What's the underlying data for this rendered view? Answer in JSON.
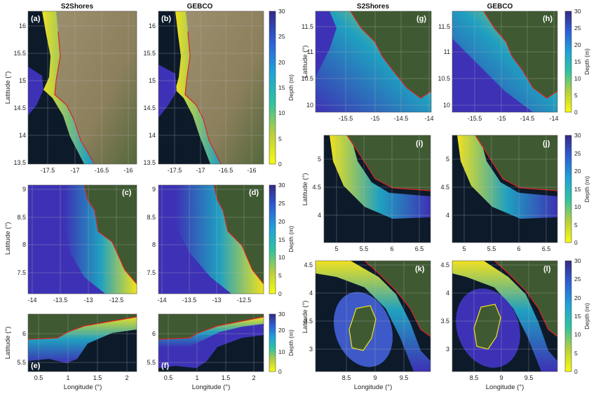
{
  "headers": {
    "left_a": "S2Shores",
    "left_b": "GEBCO",
    "right_a": "S2Shores",
    "right_b": "GEBCO"
  },
  "axis_labels": {
    "latitude": "Latitude (°)",
    "longitude": "Longitude (°)",
    "depth": "Depth (m)"
  },
  "colorbar": {
    "ticks": [
      "30",
      "25",
      "20",
      "15",
      "10",
      "5",
      "0"
    ],
    "range": [
      0,
      30
    ]
  },
  "colors": {
    "land_green": "#3f5a32",
    "sahel_tan": "#9c8f6e",
    "ocean_dark": "#0c1a2a",
    "deep": "#3d32b5",
    "mid": "#1fa0c0",
    "shallow": "#f2e21b",
    "coast_red": "#e02020"
  },
  "panels": [
    {
      "id": "a",
      "label": "(a)",
      "yticks": [
        "16",
        "15.5",
        "15",
        "14.5",
        "14",
        "13.5"
      ],
      "xticks": [
        "-17.5",
        "-17",
        "-16.5",
        "-16"
      ]
    },
    {
      "id": "b",
      "label": "(b)",
      "yticks": [
        "16",
        "15.5",
        "15",
        "14.5",
        "14",
        "13.5"
      ],
      "xticks": [
        "-17.5",
        "-17",
        "-16.5",
        "-16"
      ]
    },
    {
      "id": "c",
      "label": "(c)",
      "yticks": [
        "9",
        "8.5",
        "8",
        "7.5"
      ],
      "xticks": [
        "-14",
        "-13.5",
        "-13",
        "-12.5"
      ]
    },
    {
      "id": "d",
      "label": "(d)",
      "yticks": [
        "9",
        "8.5",
        "8",
        "7.5"
      ],
      "xticks": [
        "-14",
        "-13.5",
        "-13",
        "-12.5"
      ]
    },
    {
      "id": "e",
      "label": "(e)",
      "yticks": [
        "6",
        "5.5"
      ],
      "xticks": [
        "0.5",
        "1",
        "1.5",
        "2"
      ]
    },
    {
      "id": "f",
      "label": "(f)",
      "yticks": [
        "6",
        "5.5"
      ],
      "xticks": [
        "0.5",
        "1",
        "1.5",
        "2"
      ]
    },
    {
      "id": "g",
      "label": "(g)",
      "yticks": [
        "11.5",
        "11",
        "10.5",
        "10"
      ],
      "xticks": [
        "-15.5",
        "-15",
        "-14.5",
        "-14"
      ]
    },
    {
      "id": "h",
      "label": "(h)",
      "yticks": [
        "11.5",
        "11",
        "10.5",
        "10"
      ],
      "xticks": [
        "-15.5",
        "-15",
        "-14.5",
        "-14"
      ]
    },
    {
      "id": "i",
      "label": "(i)",
      "yticks": [
        "5",
        "4.5",
        "4"
      ],
      "xticks": [
        "5",
        "5.5",
        "6",
        "6.5"
      ]
    },
    {
      "id": "j",
      "label": "(j)",
      "yticks": [
        "5",
        "4.5",
        "4"
      ],
      "xticks": [
        "5",
        "5.5",
        "6",
        "6.5"
      ]
    },
    {
      "id": "k",
      "label": "(k)",
      "yticks": [
        "4.5",
        "4",
        "3.5",
        "3"
      ],
      "xticks": [
        "8.5",
        "9",
        "9.5"
      ]
    },
    {
      "id": "l",
      "label": "(l)",
      "yticks": [
        "4.5",
        "4",
        "3.5",
        "3"
      ],
      "xticks": [
        "8.5",
        "9",
        "9.5"
      ]
    }
  ]
}
